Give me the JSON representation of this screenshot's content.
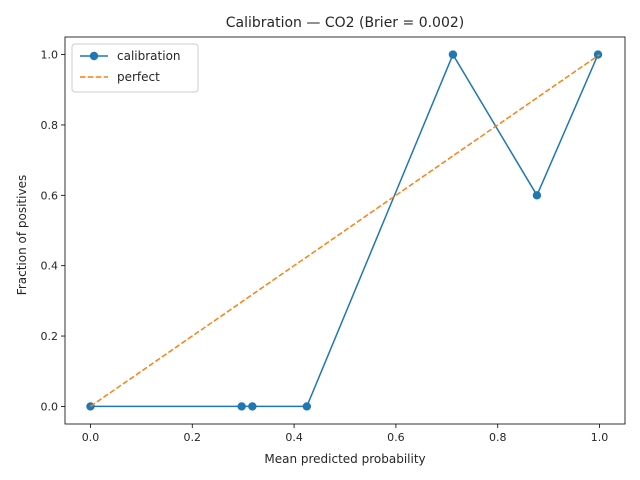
{
  "chart_data": {
    "type": "line",
    "title": "Calibration — CO2  (Brier = 0.002)",
    "xlabel": "Mean predicted probability",
    "ylabel": "Fraction of positives",
    "xlim": [
      -0.05,
      1.05
    ],
    "ylim": [
      -0.05,
      1.05
    ],
    "xticks": [
      0.0,
      0.2,
      0.4,
      0.6,
      0.8,
      1.0
    ],
    "yticks": [
      0.0,
      0.2,
      0.4,
      0.6,
      0.8,
      1.0
    ],
    "xtick_labels": [
      "0.0",
      "0.2",
      "0.4",
      "0.6",
      "0.8",
      "1.0"
    ],
    "ytick_labels": [
      "0.0",
      "0.2",
      "0.4",
      "0.6",
      "0.8",
      "1.0"
    ],
    "grid": false,
    "legend_position": "top-left",
    "series": [
      {
        "name": "calibration",
        "color": "#1f77b4",
        "style": "solid-with-markers",
        "x": [
          0.0,
          0.297,
          0.318,
          0.425,
          0.712,
          0.877,
          0.997
        ],
        "y": [
          0.0,
          0.0,
          0.0,
          0.0,
          1.0,
          0.6,
          1.0
        ]
      },
      {
        "name": "perfect",
        "color": "#ff7f0e",
        "style": "dashed",
        "x": [
          0.0,
          1.0
        ],
        "y": [
          0.0,
          1.0
        ]
      }
    ]
  }
}
